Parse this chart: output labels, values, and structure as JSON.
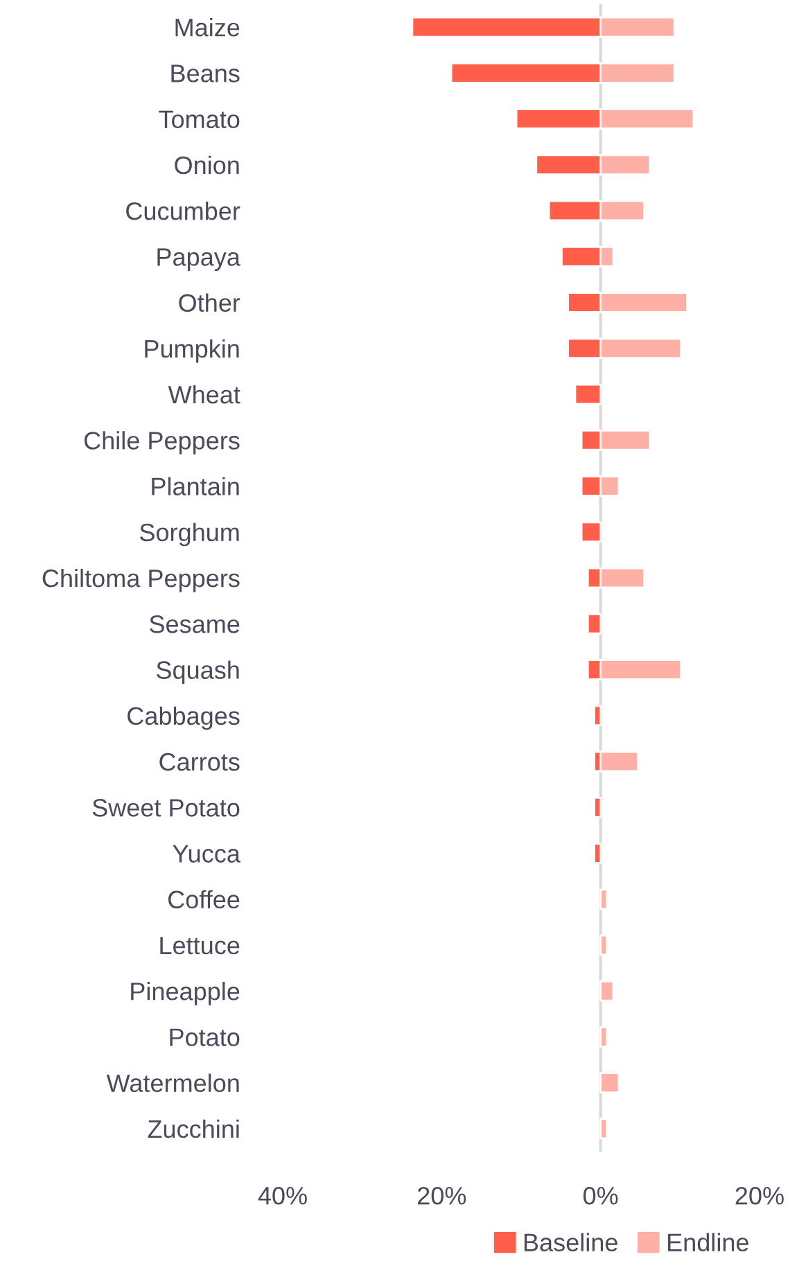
{
  "chart_data": {
    "type": "bar",
    "orientation": "horizontal",
    "categories": [
      "Maize",
      "Beans",
      "Tomato",
      "Onion",
      "Cucumber",
      "Papaya",
      "Other",
      "Pumpkin",
      "Wheat",
      "Chile Peppers",
      "Plantain",
      "Sorghum",
      "Chiltoma Peppers",
      "Sesame",
      "Squash",
      "Cabbages",
      "Carrots",
      "Sweet Potato",
      "Yucca",
      "Coffee",
      "Lettuce",
      "Pineapple",
      "Potato",
      "Watermelon",
      "Zucchini"
    ],
    "series": [
      {
        "name": "Baseline",
        "color": "#ff5e4b",
        "values": [
          -23.7,
          -18.8,
          -10.6,
          -8.1,
          -6.5,
          -4.9,
          -4.1,
          -4.1,
          -3.2,
          -2.4,
          -2.4,
          -2.4,
          -1.6,
          -1.6,
          -1.6,
          -0.8,
          -0.8,
          -0.8,
          -0.8,
          null,
          null,
          null,
          null,
          null,
          null
        ]
      },
      {
        "name": "Endline",
        "color": "#ffb0a6",
        "values": [
          9.3,
          9.3,
          11.7,
          6.2,
          5.5,
          1.6,
          10.9,
          10.1,
          null,
          6.2,
          2.3,
          null,
          5.5,
          null,
          10.1,
          null,
          4.7,
          null,
          null,
          0.8,
          0.8,
          1.6,
          0.8,
          2.3,
          0.8
        ]
      }
    ],
    "xlim": [
      -40,
      20
    ],
    "xticks": [
      {
        "value": -40,
        "label": "40%"
      },
      {
        "value": -20,
        "label": "20%"
      },
      {
        "value": 0,
        "label": "0%"
      },
      {
        "value": 20,
        "label": "20%"
      }
    ],
    "ref_lines": [
      {
        "axis": "x",
        "value": 0,
        "color": "#d9d9d9"
      }
    ],
    "stacked": true,
    "grid": false,
    "legend": "bottom"
  }
}
